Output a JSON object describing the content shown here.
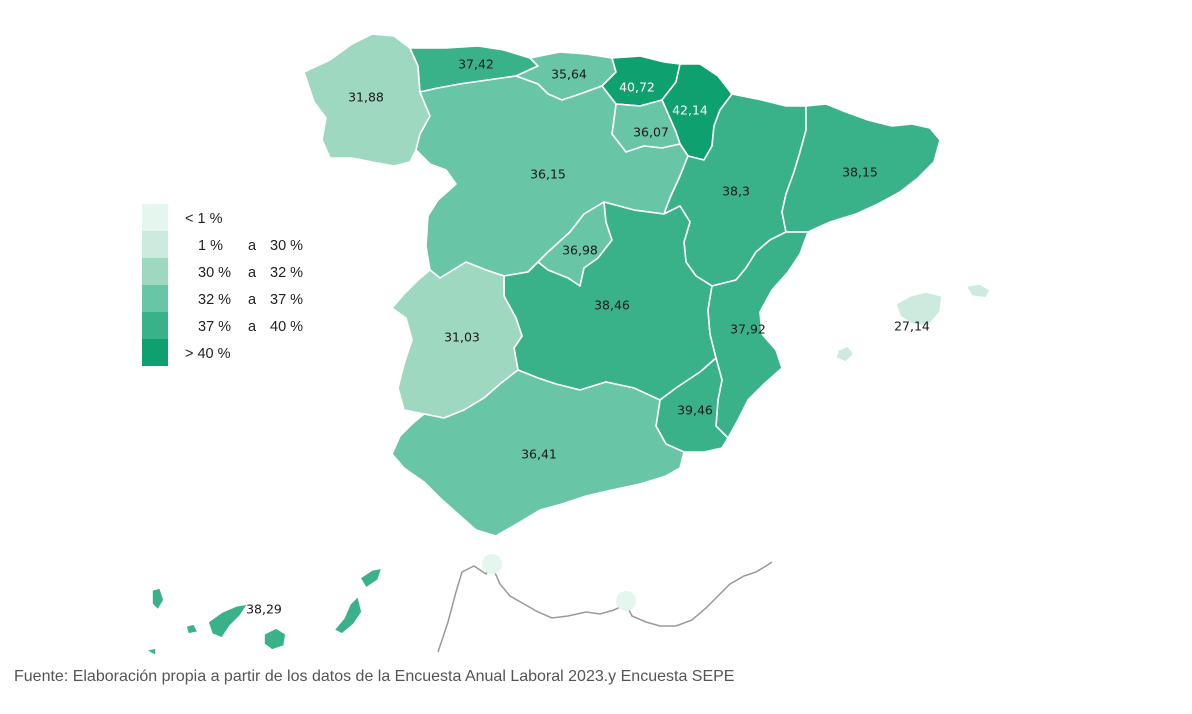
{
  "colors": {
    "class_lt1": "#e5f6ef",
    "class_1_30": "#cceadd",
    "class_30_32": "#9fd8c1",
    "class_32_37": "#68c5a5",
    "class_37_40": "#3ab289",
    "class_gt40": "#0ea06f",
    "city_marker": "#e5f6ef",
    "border_line": "#999999"
  },
  "legend": [
    {
      "key": "class_lt1",
      "from": "< 1 %",
      "sep": "",
      "to": ""
    },
    {
      "key": "class_1_30",
      "from": "1 %",
      "sep": "a",
      "to": "30 %"
    },
    {
      "key": "class_30_32",
      "from": "30 %",
      "sep": "a",
      "to": "32 %"
    },
    {
      "key": "class_32_37",
      "from": "32 %",
      "sep": "a",
      "to": "37 %"
    },
    {
      "key": "class_37_40",
      "from": "37 %",
      "sep": "a",
      "to": "40 %"
    },
    {
      "key": "class_gt40",
      "from": "> 40 %",
      "sep": "",
      "to": ""
    }
  ],
  "regions": [
    {
      "id": "galicia",
      "value": "31,88",
      "class": "class_30_32"
    },
    {
      "id": "asturias",
      "value": "37,42",
      "class": "class_37_40"
    },
    {
      "id": "cantabria",
      "value": "35,64",
      "class": "class_32_37"
    },
    {
      "id": "pais-vasco",
      "value": "40,72",
      "class": "class_gt40"
    },
    {
      "id": "navarra",
      "value": "42,14",
      "class": "class_gt40"
    },
    {
      "id": "la-rioja",
      "value": "36,07",
      "class": "class_32_37"
    },
    {
      "id": "castilla-leon",
      "value": "36,15",
      "class": "class_32_37"
    },
    {
      "id": "aragon",
      "value": "38,3",
      "class": "class_37_40"
    },
    {
      "id": "cataluna",
      "value": "38,15",
      "class": "class_37_40"
    },
    {
      "id": "madrid",
      "value": "36,98",
      "class": "class_32_37"
    },
    {
      "id": "castilla-mancha",
      "value": "38,46",
      "class": "class_37_40"
    },
    {
      "id": "valencia",
      "value": "37,92",
      "class": "class_37_40"
    },
    {
      "id": "extremadura",
      "value": "31,03",
      "class": "class_30_32"
    },
    {
      "id": "murcia",
      "value": "39,46",
      "class": "class_37_40"
    },
    {
      "id": "andalucia",
      "value": "36,41",
      "class": "class_32_37"
    },
    {
      "id": "baleares",
      "value": "27,14",
      "class": "class_1_30"
    },
    {
      "id": "canarias",
      "value": "38,29",
      "class": "class_37_40"
    },
    {
      "id": "ceuta",
      "value": "",
      "class": "class_lt1"
    },
    {
      "id": "melilla",
      "value": "",
      "class": "class_lt1"
    }
  ],
  "source": "Fuente: Elaboración propia a partir de los datos de la Encuesta Anual Laboral 2023.y Encuesta SEPE"
}
